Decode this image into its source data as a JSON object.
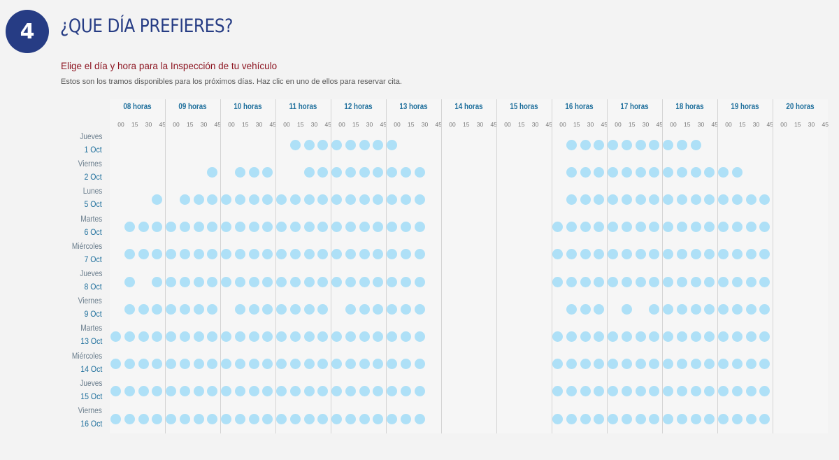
{
  "step": {
    "number": "4",
    "title": "¿QUE DÍA PREFIERES?"
  },
  "subtitle": "Elige el día y hora para la Inspección de tu vehículo",
  "description": "Estos son los tramos disponibles para los próximos días. Haz clic en uno de ellos para reservar cita.",
  "hours": [
    "08 horas",
    "09 horas",
    "10 horas",
    "11 horas",
    "12 horas",
    "13 horas",
    "14 horas",
    "15 horas",
    "16 horas",
    "17 horas",
    "18 horas",
    "19 horas",
    "20 horas"
  ],
  "minutes": [
    "00",
    "15",
    "30",
    "45"
  ],
  "slot_color": "#aee0f7",
  "days": [
    {
      "name": "Jueves",
      "date": "1 Oct",
      "slots": [
        13,
        14,
        15,
        16,
        17,
        18,
        19,
        20,
        33,
        34,
        35,
        36,
        37,
        38,
        39,
        40,
        41,
        42
      ]
    },
    {
      "name": "Viernes",
      "date": "2 Oct",
      "slots": [
        7,
        9,
        10,
        11,
        14,
        15,
        16,
        17,
        18,
        19,
        20,
        21,
        22,
        33,
        34,
        35,
        36,
        37,
        38,
        39,
        40,
        41,
        42,
        43,
        44,
        45
      ]
    },
    {
      "name": "Lunes",
      "date": "5 Oct",
      "slots": [
        3,
        5,
        6,
        7,
        8,
        9,
        10,
        11,
        12,
        13,
        14,
        15,
        16,
        17,
        18,
        19,
        20,
        21,
        22,
        33,
        34,
        35,
        36,
        37,
        38,
        39,
        40,
        41,
        42,
        43,
        44,
        45,
        46,
        47
      ]
    },
    {
      "name": "Martes",
      "date": "6 Oct",
      "slots": [
        1,
        2,
        3,
        4,
        5,
        6,
        7,
        8,
        9,
        10,
        11,
        12,
        13,
        14,
        15,
        16,
        17,
        18,
        19,
        20,
        21,
        22,
        32,
        33,
        34,
        35,
        36,
        37,
        38,
        39,
        40,
        41,
        42,
        43,
        44,
        45,
        46,
        47
      ]
    },
    {
      "name": "Miércoles",
      "date": "7 Oct",
      "slots": [
        1,
        2,
        3,
        4,
        5,
        6,
        7,
        8,
        9,
        10,
        11,
        12,
        13,
        14,
        15,
        16,
        17,
        18,
        19,
        20,
        21,
        22,
        32,
        33,
        34,
        35,
        36,
        37,
        38,
        39,
        40,
        41,
        42,
        43,
        44,
        45,
        46,
        47
      ]
    },
    {
      "name": "Jueves",
      "date": "8 Oct",
      "slots": [
        1,
        3,
        4,
        5,
        6,
        7,
        8,
        9,
        10,
        11,
        12,
        13,
        14,
        15,
        16,
        17,
        18,
        19,
        20,
        21,
        22,
        32,
        33,
        34,
        35,
        36,
        37,
        38,
        39,
        40,
        41,
        42,
        43,
        44,
        45,
        46,
        47
      ]
    },
    {
      "name": "Viernes",
      "date": "9 Oct",
      "slots": [
        1,
        2,
        3,
        4,
        5,
        6,
        7,
        9,
        10,
        11,
        12,
        13,
        14,
        15,
        17,
        18,
        19,
        20,
        21,
        22,
        33,
        34,
        35,
        37,
        39,
        40,
        41,
        42,
        43,
        44,
        45,
        46,
        47
      ]
    },
    {
      "name": "Martes",
      "date": "13 Oct",
      "slots": [
        0,
        1,
        2,
        3,
        4,
        5,
        6,
        7,
        8,
        9,
        10,
        11,
        12,
        13,
        14,
        15,
        16,
        17,
        18,
        19,
        20,
        21,
        22,
        32,
        33,
        34,
        35,
        36,
        37,
        38,
        39,
        40,
        41,
        42,
        43,
        44,
        45,
        46,
        47
      ]
    },
    {
      "name": "Miércoles",
      "date": "14 Oct",
      "slots": [
        0,
        1,
        2,
        3,
        4,
        5,
        6,
        7,
        8,
        9,
        10,
        11,
        12,
        13,
        14,
        15,
        16,
        17,
        18,
        19,
        20,
        21,
        22,
        32,
        33,
        34,
        35,
        36,
        37,
        38,
        39,
        40,
        41,
        42,
        43,
        44,
        45,
        46,
        47
      ]
    },
    {
      "name": "Jueves",
      "date": "15 Oct",
      "slots": [
        0,
        1,
        2,
        3,
        4,
        5,
        6,
        7,
        8,
        9,
        10,
        11,
        12,
        13,
        14,
        15,
        16,
        17,
        18,
        19,
        20,
        21,
        22,
        32,
        33,
        34,
        35,
        36,
        37,
        38,
        39,
        40,
        41,
        42,
        43,
        44,
        45,
        46,
        47
      ]
    },
    {
      "name": "Viernes",
      "date": "16 Oct",
      "slots": [
        0,
        1,
        2,
        3,
        4,
        5,
        6,
        7,
        8,
        9,
        10,
        11,
        12,
        13,
        14,
        15,
        16,
        17,
        18,
        19,
        20,
        21,
        22,
        32,
        33,
        34,
        35,
        36,
        37,
        38,
        39,
        40,
        41,
        42,
        43,
        44,
        45,
        46,
        47
      ]
    }
  ]
}
